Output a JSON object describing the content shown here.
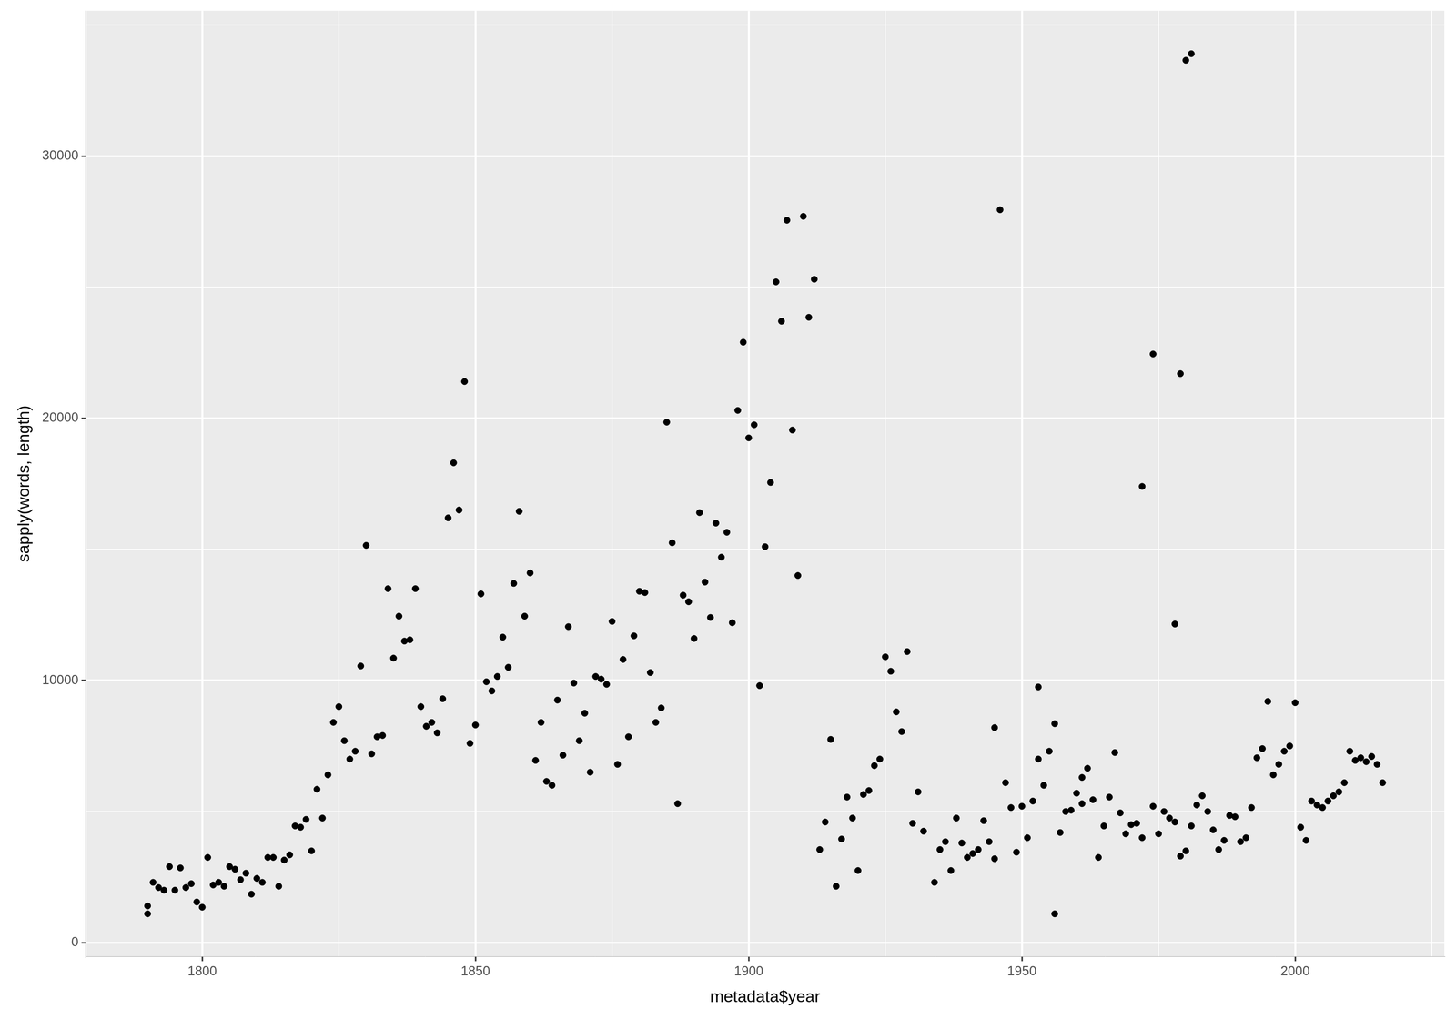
{
  "chart_data": {
    "type": "scatter",
    "xlabel": "metadata$year",
    "ylabel": "sapply(words, length)",
    "x": [
      1790,
      1790,
      1791,
      1792,
      1793,
      1794,
      1795,
      1796,
      1797,
      1798,
      1799,
      1800,
      1801,
      1802,
      1803,
      1804,
      1805,
      1806,
      1807,
      1808,
      1809,
      1810,
      1811,
      1812,
      1813,
      1814,
      1815,
      1816,
      1817,
      1818,
      1819,
      1820,
      1821,
      1822,
      1823,
      1824,
      1825,
      1826,
      1827,
      1828,
      1829,
      1830,
      1831,
      1832,
      1833,
      1834,
      1835,
      1836,
      1837,
      1838,
      1839,
      1840,
      1841,
      1842,
      1843,
      1844,
      1845,
      1846,
      1847,
      1848,
      1849,
      1850,
      1851,
      1852,
      1853,
      1854,
      1855,
      1856,
      1857,
      1858,
      1859,
      1860,
      1861,
      1862,
      1863,
      1864,
      1865,
      1866,
      1867,
      1868,
      1869,
      1870,
      1871,
      1872,
      1873,
      1874,
      1875,
      1876,
      1877,
      1878,
      1879,
      1880,
      1881,
      1882,
      1883,
      1884,
      1885,
      1886,
      1887,
      1888,
      1889,
      1890,
      1891,
      1892,
      1893,
      1894,
      1895,
      1896,
      1897,
      1898,
      1899,
      1900,
      1901,
      1902,
      1903,
      1904,
      1905,
      1906,
      1907,
      1908,
      1909,
      1910,
      1911,
      1912,
      1913,
      1914,
      1915,
      1916,
      1917,
      1918,
      1919,
      1920,
      1921,
      1922,
      1923,
      1924,
      1925,
      1926,
      1927,
      1928,
      1929,
      1930,
      1931,
      1932,
      1934,
      1935,
      1936,
      1937,
      1938,
      1939,
      1940,
      1941,
      1942,
      1943,
      1944,
      1945,
      1945,
      1946,
      1947,
      1948,
      1949,
      1950,
      1951,
      1952,
      1953,
      1953,
      1954,
      1955,
      1956,
      1956,
      1957,
      1958,
      1959,
      1960,
      1961,
      1961,
      1962,
      1963,
      1964,
      1965,
      1966,
      1967,
      1968,
      1969,
      1970,
      1971,
      1972,
      1972,
      1974,
      1974,
      1975,
      1976,
      1977,
      1978,
      1978,
      1979,
      1979,
      1980,
      1980,
      1981,
      1981,
      1982,
      1983,
      1984,
      1985,
      1986,
      1987,
      1988,
      1989,
      1990,
      1991,
      1992,
      1993,
      1994,
      1995,
      1996,
      1997,
      1998,
      1999,
      2000,
      2001,
      2002,
      2003,
      2004,
      2005,
      2006,
      2007,
      2008,
      2009,
      2010,
      2011,
      2012,
      2013,
      2014,
      2015,
      2016
    ],
    "values": [
      1100,
      1400,
      2300,
      2100,
      2000,
      2900,
      2000,
      2850,
      2100,
      2250,
      1550,
      1350,
      3250,
      2200,
      2300,
      2150,
      2900,
      2800,
      2400,
      2650,
      1850,
      2450,
      2300,
      3250,
      3250,
      2150,
      3150,
      3350,
      4450,
      4400,
      4700,
      3500,
      5850,
      4750,
      6400,
      8400,
      9000,
      7700,
      7000,
      7300,
      10550,
      15150,
      7200,
      7850,
      7900,
      13500,
      10850,
      12450,
      11500,
      11550,
      13500,
      9000,
      8250,
      8400,
      8000,
      9300,
      16200,
      18300,
      16500,
      21400,
      7600,
      8300,
      13300,
      9950,
      9600,
      10150,
      11650,
      10500,
      13700,
      16450,
      12450,
      14100,
      6950,
      8400,
      6150,
      6000,
      9250,
      7150,
      12050,
      9900,
      7700,
      8750,
      6500,
      10150,
      10050,
      9850,
      12250,
      6800,
      10800,
      7850,
      11700,
      13400,
      13350,
      10300,
      8400,
      8950,
      19850,
      15250,
      5300,
      13250,
      13000,
      11600,
      16400,
      13750,
      12400,
      16000,
      14700,
      15650,
      12200,
      20300,
      22900,
      19250,
      19750,
      9800,
      15100,
      17550,
      25200,
      23700,
      27550,
      19550,
      14000,
      27700,
      23850,
      25300,
      3550,
      4600,
      7750,
      2150,
      3950,
      5550,
      4750,
      2750,
      5650,
      5800,
      6750,
      7000,
      10900,
      10350,
      8800,
      8050,
      11100,
      4550,
      5750,
      4250,
      2300,
      3550,
      3850,
      2750,
      4750,
      3800,
      3250,
      3400,
      3550,
      4650,
      3850,
      3200,
      8200,
      27950,
      6100,
      5150,
      3450,
      5200,
      4000,
      5400,
      9750,
      7000,
      6000,
      7300,
      8350,
      1100,
      4200,
      5000,
      5050,
      5700,
      6300,
      5300,
      6650,
      5450,
      3250,
      4450,
      5550,
      7250,
      4950,
      4150,
      4500,
      4550,
      17400,
      4000,
      22450,
      5200,
      4150,
      5000,
      4750,
      12150,
      4600,
      21700,
      3300,
      33650,
      3500,
      33900,
      4450,
      5250,
      5600,
      5000,
      4300,
      3550,
      3900,
      4850,
      4800,
      3850,
      4000,
      5150,
      7050,
      7400,
      9200,
      6400,
      6800,
      7300,
      7500,
      9150,
      4400,
      3900,
      5400,
      5250,
      5150,
      5400,
      5600,
      5750,
      6100,
      7300,
      6950,
      7050,
      6900,
      7100,
      6800,
      6100
    ],
    "color": "#000000",
    "marker": "circle",
    "xlim": [
      1778.7,
      2027.3
    ],
    "ylim": [
      -540,
      35540
    ],
    "xticks": [
      1800,
      1850,
      1900,
      1950,
      2000
    ],
    "yticks": [
      0,
      10000,
      20000,
      30000
    ],
    "grid": true
  }
}
